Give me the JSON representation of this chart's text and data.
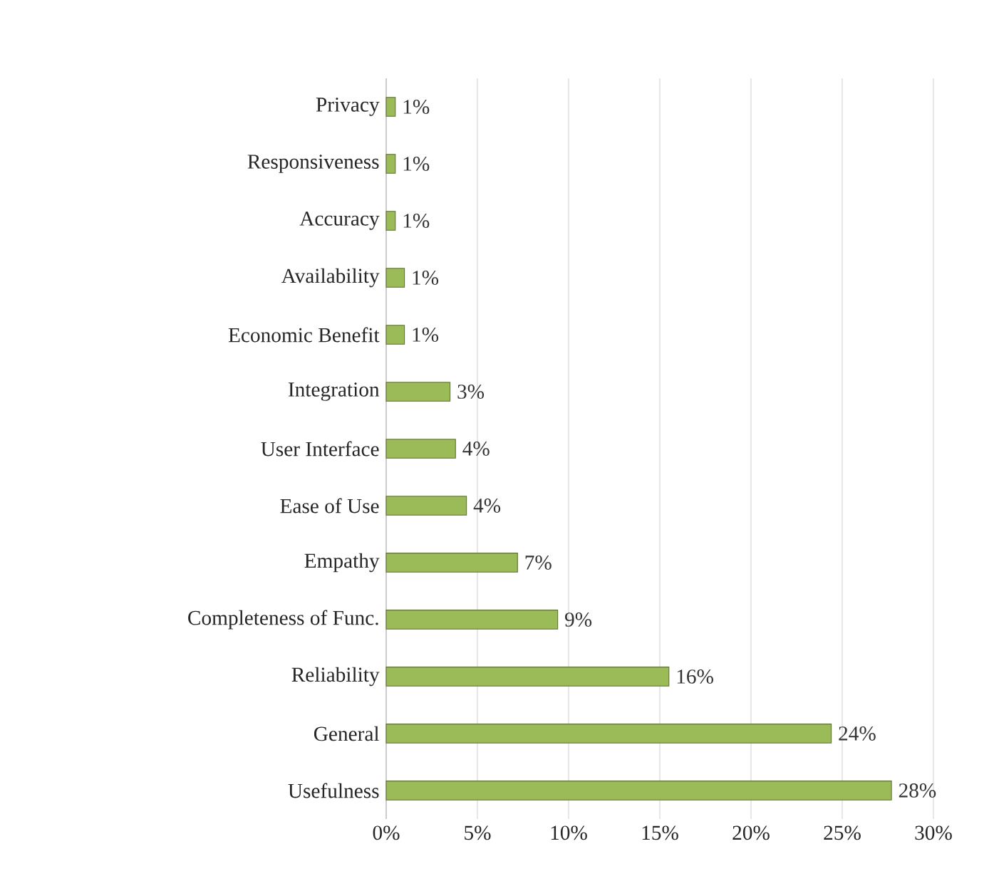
{
  "chart_data": {
    "type": "bar",
    "orientation": "horizontal",
    "categories": [
      "Privacy",
      "Responsiveness",
      "Accuracy",
      "Availability",
      "Economic Benefit",
      "Integration",
      "User Interface",
      "Ease of Use",
      "Empathy",
      "Completeness of Func.",
      "Reliability",
      "General",
      "Usefulness"
    ],
    "values": [
      0.5,
      0.5,
      0.5,
      1.0,
      1.0,
      3.5,
      3.8,
      4.4,
      7.2,
      9.4,
      15.5,
      24.4,
      27.7
    ],
    "value_labels": [
      "1%",
      "1%",
      "1%",
      "1%",
      "1%",
      "3%",
      "4%",
      "4%",
      "7%",
      "9%",
      "16%",
      "24%",
      "28%"
    ],
    "color": "#9bbb59",
    "xlim": [
      0,
      30
    ],
    "xticks": [
      {
        "value": 0,
        "label": "0%"
      },
      {
        "value": 5,
        "label": "5%"
      },
      {
        "value": 10,
        "label": "10%"
      },
      {
        "value": 15,
        "label": "15%"
      },
      {
        "value": 20,
        "label": "20%"
      },
      {
        "value": 25,
        "label": "25%"
      },
      {
        "value": 30,
        "label": "30%"
      }
    ],
    "grid": "x"
  }
}
